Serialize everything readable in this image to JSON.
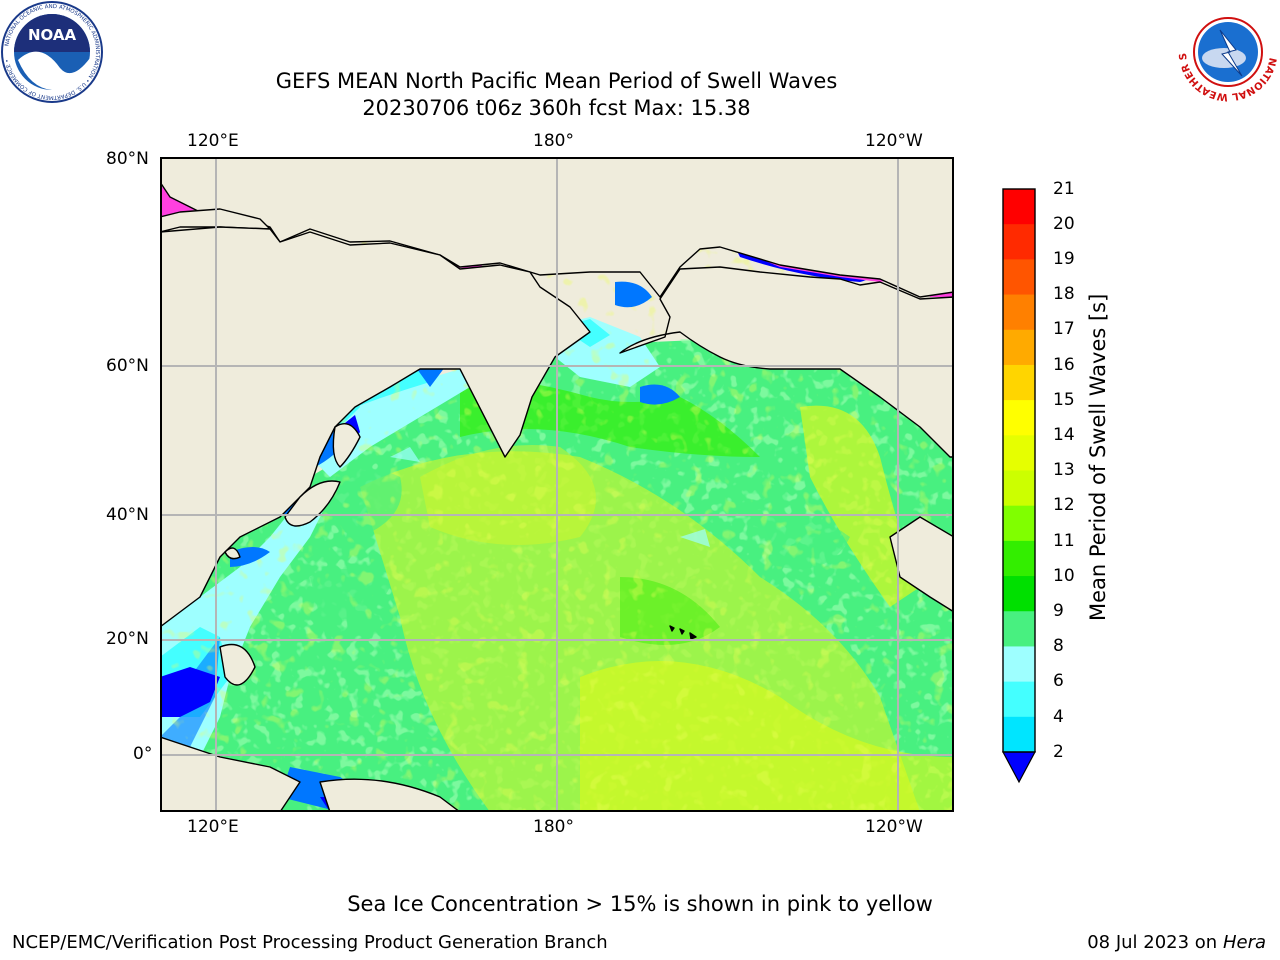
{
  "header": {
    "title_line1": "GEFS MEAN North Pacific Mean Period of Swell Waves",
    "title_line2": "20230706 t06z 360h fcst   Max: 15.38"
  },
  "logos": {
    "noaa_text": "NOAA",
    "noaa_ring": "NATIONAL OCEANIC AND ATMOSPHERIC ADMINISTRATION • U.S. DEPARTMENT OF COMMERCE •",
    "nws_ring": "NATIONAL WEATHER SERVICE"
  },
  "map": {
    "lon_labels": [
      "120°E",
      "180°",
      "120°W"
    ],
    "lat_labels": [
      "80°N",
      "60°N",
      "40°N",
      "20°N",
      "0°"
    ],
    "colors": {
      "land": "#efecdc",
      "grid": "#b5b5b5",
      "coast": "#000000"
    }
  },
  "colorbar": {
    "label": "Mean Period of Swell Waves [s]",
    "ticks": [
      "21",
      "20",
      "19",
      "18",
      "17",
      "16",
      "15",
      "14",
      "13",
      "12",
      "11",
      "10",
      "9",
      "8",
      "6",
      "4",
      "2"
    ],
    "colors": [
      "#ff0000",
      "#ff2a00",
      "#ff5500",
      "#ff8000",
      "#ffaa00",
      "#ffd500",
      "#ffff00",
      "#e6ff00",
      "#ccff00",
      "#80ff00",
      "#33ee00",
      "#00e000",
      "#48f080",
      "#9effff",
      "#44ffff",
      "#00e5ff",
      "#0077ff"
    ],
    "extend_color": "#0000ff",
    "extend": "min"
  },
  "footer": {
    "note": "Sea Ice Concentration > 15% is shown in pink to yellow",
    "left": "NCEP/EMC/Verification Post Processing Product Generation Branch",
    "right_date": "08 Jul 2023 on ",
    "right_host": "Hera"
  }
}
